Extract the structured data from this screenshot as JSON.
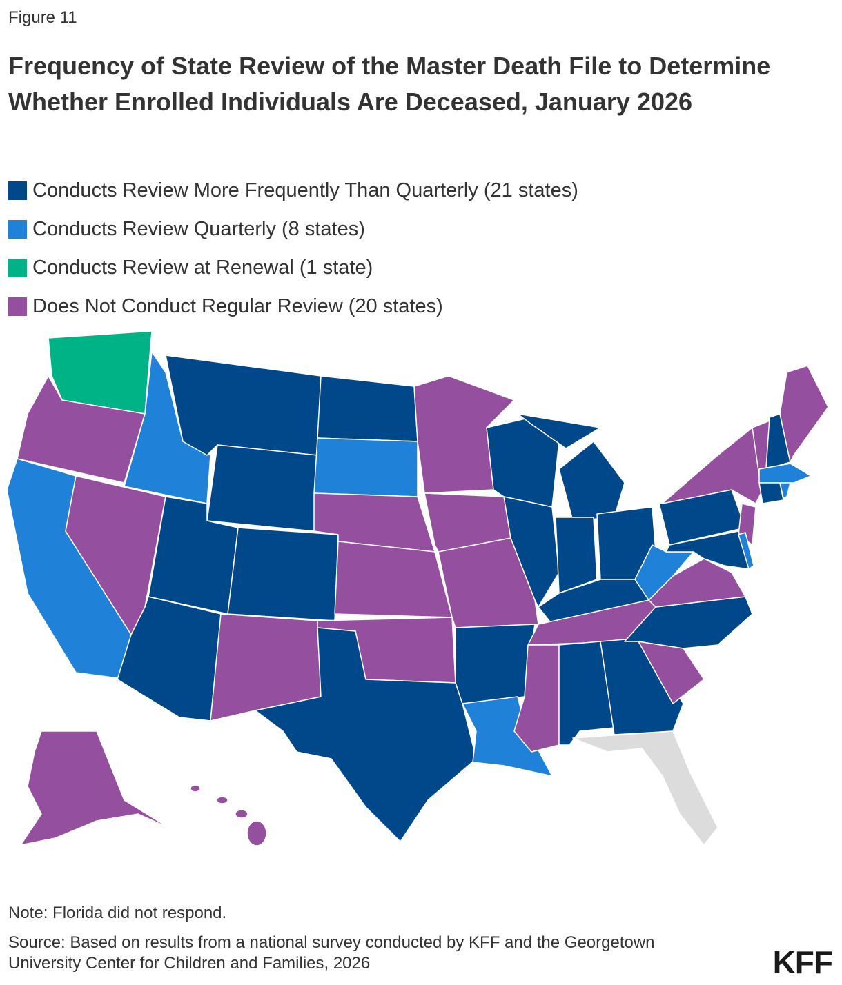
{
  "figure_label": "Figure 11",
  "title": "Frequency of State Review of the Master Death File to Determine Whether Enrolled Individuals Are Deceased, January 2026",
  "legend": [
    {
      "label": "Conducts Review More Frequently Than Quarterly (21 states)",
      "color": "#00488a"
    },
    {
      "label": "Conducts Review Quarterly (8 states)",
      "color": "#1f82d8"
    },
    {
      "label": "Conducts Review at Renewal (1 state)",
      "color": "#00b386"
    },
    {
      "label": "Does Not Conduct Regular Review (20 states)",
      "color": "#94509e"
    }
  ],
  "note": "Note: Florida did not respond.",
  "source": "Source: Based on results from a national survey conducted by KFF and the Georgetown University Center for Children and Families, 2026",
  "logo": "KFF"
}
